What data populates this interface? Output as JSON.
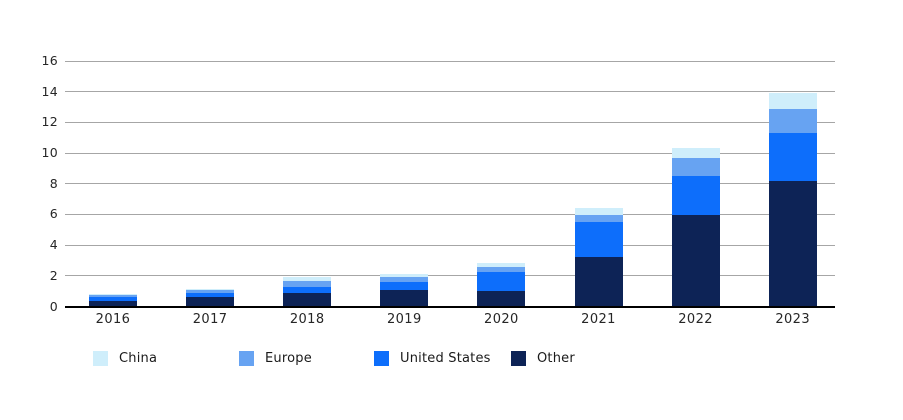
{
  "chart_data": {
    "type": "bar",
    "stacked": true,
    "title": "",
    "xlabel": "",
    "ylabel": "",
    "categories": [
      "2016",
      "2017",
      "2018",
      "2019",
      "2020",
      "2021",
      "2022",
      "2023"
    ],
    "series": [
      {
        "name": "Other",
        "color": "#0d2356",
        "values": [
          0.35,
          0.6,
          0.85,
          1.1,
          1.0,
          3.2,
          5.95,
          8.2
        ]
      },
      {
        "name": "United States",
        "color": "#0d6efb",
        "values": [
          0.3,
          0.3,
          0.4,
          0.5,
          1.25,
          2.3,
          2.55,
          3.1
        ]
      },
      {
        "name": "Europe",
        "color": "#67a3f2",
        "values": [
          0.1,
          0.15,
          0.4,
          0.3,
          0.3,
          0.45,
          1.15,
          1.6
        ]
      },
      {
        "name": "China",
        "color": "#cfeefb",
        "values": [
          0.05,
          0.1,
          0.3,
          0.25,
          0.3,
          0.45,
          0.65,
          1.0
        ]
      }
    ],
    "totals": [
      0.8,
      1.15,
      1.95,
      2.15,
      2.85,
      6.4,
      10.3,
      13.9
    ],
    "y_ticks": [
      0,
      2,
      4,
      6,
      8,
      10,
      12,
      14,
      16
    ],
    "ylim": [
      0,
      16
    ],
    "grid": true,
    "legend": [
      "China",
      "Europe",
      "United States",
      "Other"
    ],
    "legend_position": "bottom"
  },
  "colors": {
    "gridline": "#a6a6a6",
    "axis": "#000000",
    "tick_text": "#262626",
    "legend_text": "#1a1a1a",
    "background": "#ffffff"
  }
}
